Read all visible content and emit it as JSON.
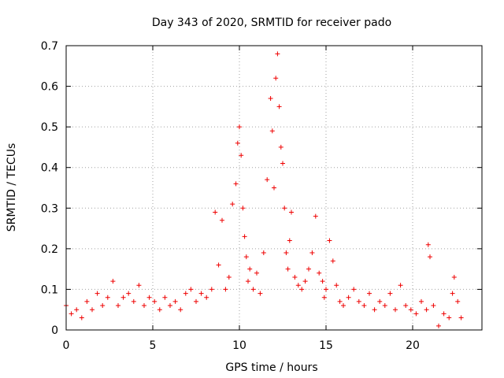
{
  "chart_data": {
    "type": "scatter",
    "title": "Day 343 of 2020, SRMTID for receiver pado",
    "xlabel": "GPS time / hours",
    "ylabel": "SRMTID / TECUs",
    "xlim": [
      0,
      24
    ],
    "ylim": [
      0,
      0.7
    ],
    "xticks": [
      0,
      5,
      10,
      15,
      20
    ],
    "yticks": [
      0,
      0.1,
      0.2,
      0.3,
      0.4,
      0.5,
      0.6,
      0.7
    ],
    "ytick_labels": [
      "0",
      "0.1",
      "0.2",
      "0.3",
      "0.4",
      "0.5",
      "0.6",
      "0.7"
    ],
    "grid": true,
    "marker": "plus",
    "color": "#ee0000",
    "series": [
      {
        "name": "SRMTID",
        "x": [
          0.0,
          0.3,
          0.6,
          0.9,
          1.2,
          1.5,
          1.8,
          2.1,
          2.4,
          2.7,
          3.0,
          3.3,
          3.6,
          3.9,
          4.2,
          4.5,
          4.8,
          5.1,
          5.4,
          5.7,
          6.0,
          6.3,
          6.6,
          6.9,
          7.2,
          7.5,
          7.8,
          8.1,
          8.4,
          8.6,
          8.8,
          9.0,
          9.2,
          9.4,
          9.6,
          9.8,
          9.9,
          10.0,
          10.1,
          10.2,
          10.3,
          10.4,
          10.5,
          10.6,
          10.8,
          11.0,
          11.2,
          11.4,
          11.6,
          11.8,
          11.9,
          12.0,
          12.1,
          12.2,
          12.3,
          12.4,
          12.5,
          12.6,
          12.7,
          12.8,
          12.9,
          13.0,
          13.2,
          13.4,
          13.6,
          13.8,
          14.0,
          14.2,
          14.4,
          14.6,
          14.8,
          14.9,
          15.0,
          15.2,
          15.4,
          15.6,
          15.8,
          16.0,
          16.3,
          16.6,
          16.9,
          17.2,
          17.5,
          17.8,
          18.1,
          18.4,
          18.7,
          19.0,
          19.3,
          19.6,
          19.9,
          20.2,
          20.5,
          20.8,
          20.9,
          21.0,
          21.2,
          21.5,
          21.8,
          22.1,
          22.3,
          22.4,
          22.6,
          22.8
        ],
        "y": [
          0.06,
          0.04,
          0.05,
          0.03,
          0.07,
          0.05,
          0.09,
          0.06,
          0.08,
          0.12,
          0.06,
          0.08,
          0.09,
          0.07,
          0.11,
          0.06,
          0.08,
          0.07,
          0.05,
          0.08,
          0.06,
          0.07,
          0.05,
          0.09,
          0.1,
          0.07,
          0.09,
          0.08,
          0.1,
          0.29,
          0.16,
          0.27,
          0.1,
          0.13,
          0.31,
          0.36,
          0.46,
          0.5,
          0.43,
          0.3,
          0.23,
          0.18,
          0.12,
          0.15,
          0.1,
          0.14,
          0.09,
          0.19,
          0.37,
          0.57,
          0.49,
          0.35,
          0.62,
          0.68,
          0.55,
          0.45,
          0.41,
          0.3,
          0.19,
          0.15,
          0.22,
          0.29,
          0.13,
          0.11,
          0.1,
          0.12,
          0.15,
          0.19,
          0.28,
          0.14,
          0.12,
          0.08,
          0.1,
          0.22,
          0.17,
          0.11,
          0.07,
          0.06,
          0.08,
          0.1,
          0.07,
          0.06,
          0.09,
          0.05,
          0.07,
          0.06,
          0.09,
          0.05,
          0.11,
          0.06,
          0.05,
          0.04,
          0.07,
          0.05,
          0.21,
          0.18,
          0.06,
          0.01,
          0.04,
          0.03,
          0.09,
          0.13,
          0.07,
          0.03
        ]
      }
    ]
  }
}
